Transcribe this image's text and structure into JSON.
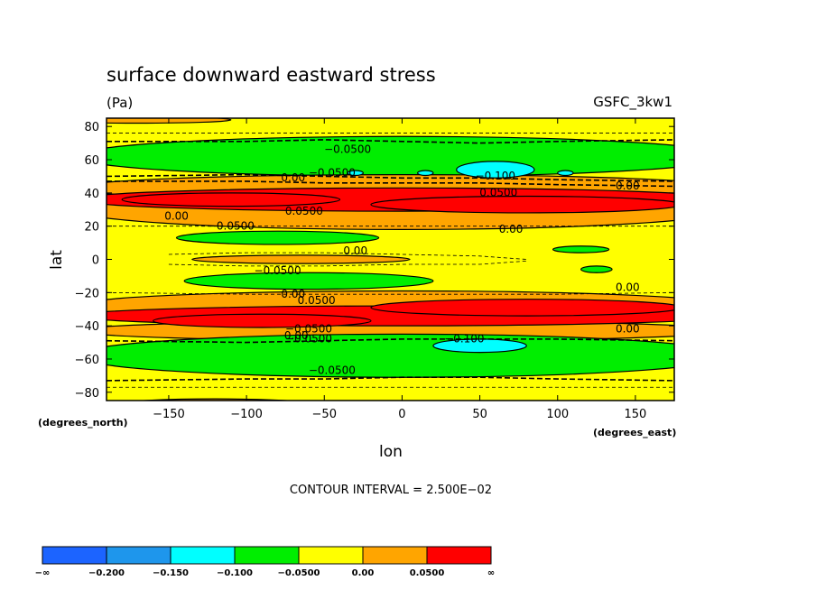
{
  "chart_data": {
    "type": "heatmap",
    "title": "surface downward eastward stress",
    "units": "(Pa)",
    "model_label": "GSFC_3kw1",
    "xlabel": "lon",
    "ylabel": "lat",
    "x_unit_note": "(degrees_east)",
    "y_unit_note": "(degrees_north)",
    "xlim": [
      -190,
      175
    ],
    "ylim": [
      -85,
      85
    ],
    "x_ticks": [
      -150,
      -100,
      -50,
      0,
      50,
      100,
      150
    ],
    "x_tick_labels": [
      "−150",
      "−100",
      "−50",
      "0",
      "50",
      "100",
      "150"
    ],
    "y_ticks": [
      80,
      60,
      40,
      20,
      0,
      -20,
      -40,
      -60,
      -80
    ],
    "y_tick_labels": [
      "80",
      "60",
      "40",
      "20",
      "0",
      "−20",
      "−40",
      "−60",
      "−80"
    ],
    "contour_interval_text": "CONTOUR INTERVAL = 2.500E−02",
    "colorbar": {
      "colors": [
        "#1c64ff",
        "#1e96ec",
        "#00ffff",
        "#00ee00",
        "#ffff00",
        "#ffa500",
        "#ff0000"
      ],
      "labels": [
        "−∞",
        "−0.200",
        "−0.150",
        "−0.100",
        "−0.0500",
        "0.00",
        "0.0500",
        "∞"
      ]
    },
    "background_color": "#ffff00",
    "regions": [
      {
        "color": "#ffa500",
        "cx": -170,
        "cy": 84,
        "rx": 60,
        "ry": 2
      },
      {
        "color": "#00ee00",
        "cx": 0,
        "cy": 62,
        "rx": 210,
        "ry": 12
      },
      {
        "color": "#ffa500",
        "cx": 0,
        "cy": 43,
        "rx": 210,
        "ry": 8
      },
      {
        "color": "#ffa500",
        "cx": 0,
        "cy": 30,
        "rx": 210,
        "ry": 12
      },
      {
        "color": "#ff0000",
        "cx": 0,
        "cy": 36,
        "rx": 210,
        "ry": 7
      },
      {
        "color": "#ff0000",
        "cx": -110,
        "cy": 36,
        "rx": 70,
        "ry": 4
      },
      {
        "color": "#ff0000",
        "cx": 80,
        "cy": 33,
        "rx": 100,
        "ry": 5
      },
      {
        "color": "#00ffff",
        "cx": 60,
        "cy": 54,
        "rx": 25,
        "ry": 5
      },
      {
        "color": "#00ffff",
        "cx": -30,
        "cy": 52,
        "rx": 5,
        "ry": 1.5
      },
      {
        "color": "#00ffff",
        "cx": 15,
        "cy": 52,
        "rx": 5,
        "ry": 1.5
      },
      {
        "color": "#00ffff",
        "cx": 105,
        "cy": 52,
        "rx": 5,
        "ry": 1.5
      },
      {
        "color": "#00ee00",
        "cx": -80,
        "cy": 13,
        "rx": 65,
        "ry": 4
      },
      {
        "color": "#00ee00",
        "cx": 115,
        "cy": 6,
        "rx": 18,
        "ry": 2
      },
      {
        "color": "#00ee00",
        "cx": 125,
        "cy": -6,
        "rx": 10,
        "ry": 2
      },
      {
        "color": "#ffa500",
        "cx": -65,
        "cy": 0,
        "rx": 70,
        "ry": 2.5
      },
      {
        "color": "#00ee00",
        "cx": -60,
        "cy": -13,
        "rx": 80,
        "ry": 5
      },
      {
        "color": "#ffa500",
        "cx": 0,
        "cy": -28,
        "rx": 210,
        "ry": 9
      },
      {
        "color": "#ffa500",
        "cx": 0,
        "cy": -43,
        "rx": 210,
        "ry": 6
      },
      {
        "color": "#ff0000",
        "cx": 0,
        "cy": -34,
        "rx": 210,
        "ry": 6
      },
      {
        "color": "#ff0000",
        "cx": -90,
        "cy": -37,
        "rx": 70,
        "ry": 4
      },
      {
        "color": "#ff0000",
        "cx": 80,
        "cy": -29,
        "rx": 100,
        "ry": 5
      },
      {
        "color": "#00ee00",
        "cx": 0,
        "cy": -58,
        "rx": 210,
        "ry": 13
      },
      {
        "color": "#00ffff",
        "cx": 50,
        "cy": -52,
        "rx": 30,
        "ry": 4
      },
      {
        "color": "#ffa500",
        "cx": -120,
        "cy": -87,
        "rx": 60,
        "ry": 3
      }
    ],
    "dashed_lines": [
      {
        "style": "bold",
        "points": [
          [
            -190,
            71
          ],
          [
            -100,
            71
          ],
          [
            -50,
            72
          ],
          [
            0,
            71
          ],
          [
            50,
            70
          ],
          [
            100,
            71
          ],
          [
            175,
            72
          ]
        ]
      },
      {
        "style": "bold",
        "points": [
          [
            -190,
            50
          ],
          [
            -100,
            51
          ],
          [
            -50,
            50
          ],
          [
            0,
            49
          ],
          [
            50,
            49
          ],
          [
            100,
            48
          ],
          [
            175,
            47
          ]
        ]
      },
      {
        "style": "bold",
        "points": [
          [
            -190,
            47
          ],
          [
            -100,
            47
          ],
          [
            -50,
            46
          ],
          [
            0,
            46
          ],
          [
            50,
            46
          ],
          [
            100,
            45
          ],
          [
            175,
            44
          ]
        ]
      },
      {
        "style": "bold",
        "points": [
          [
            -190,
            -49
          ],
          [
            -100,
            -50
          ],
          [
            -50,
            -49
          ],
          [
            0,
            -48
          ],
          [
            50,
            -48
          ],
          [
            100,
            -48
          ],
          [
            175,
            -49
          ]
        ]
      },
      {
        "style": "bold",
        "points": [
          [
            -190,
            -73
          ],
          [
            -100,
            -72
          ],
          [
            -50,
            -72
          ],
          [
            0,
            -71
          ],
          [
            50,
            -71
          ],
          [
            100,
            -72
          ],
          [
            175,
            -73
          ]
        ]
      },
      {
        "style": "thin",
        "points": [
          [
            -190,
            76
          ],
          [
            -100,
            76
          ],
          [
            0,
            76
          ],
          [
            100,
            76
          ],
          [
            175,
            76
          ]
        ]
      },
      {
        "style": "thin",
        "points": [
          [
            -190,
            -77
          ],
          [
            -100,
            -77
          ],
          [
            0,
            -77
          ],
          [
            100,
            -77
          ],
          [
            175,
            -77
          ]
        ]
      },
      {
        "style": "thin",
        "points": [
          [
            -150,
            3
          ],
          [
            -100,
            4
          ],
          [
            -50,
            4
          ],
          [
            0,
            3
          ],
          [
            50,
            2
          ],
          [
            80,
            0
          ]
        ]
      },
      {
        "style": "thin",
        "points": [
          [
            -150,
            -3
          ],
          [
            -100,
            -4
          ],
          [
            -50,
            -4
          ],
          [
            0,
            -3
          ],
          [
            50,
            -3
          ],
          [
            80,
            -1
          ]
        ]
      },
      {
        "style": "thin",
        "points": [
          [
            -190,
            -20
          ],
          [
            -100,
            -21
          ],
          [
            0,
            -21
          ],
          [
            100,
            -21
          ],
          [
            175,
            -20
          ]
        ]
      },
      {
        "style": "thin",
        "points": [
          [
            -190,
            20
          ],
          [
            -100,
            20
          ],
          [
            0,
            20
          ],
          [
            100,
            20
          ],
          [
            175,
            20
          ]
        ]
      }
    ],
    "contour_labels": [
      {
        "text": "−0.0500",
        "lon": -35,
        "lat": 64
      },
      {
        "text": "−0.0500",
        "lon": -45,
        "lat": 50
      },
      {
        "text": "0.00",
        "lon": -70,
        "lat": 47
      },
      {
        "text": "−0.100",
        "lon": 60,
        "lat": 48
      },
      {
        "text": "0.0500",
        "lon": 62,
        "lat": 38
      },
      {
        "text": "0.00",
        "lon": 145,
        "lat": 42
      },
      {
        "text": "0.0500",
        "lon": -63,
        "lat": 27
      },
      {
        "text": "0.00",
        "lon": -145,
        "lat": 24
      },
      {
        "text": "−0.0500",
        "lon": -110,
        "lat": 18
      },
      {
        "text": "0.00",
        "lon": 70,
        "lat": 16
      },
      {
        "text": "0.00",
        "lon": -30,
        "lat": 3
      },
      {
        "text": "−0.0500",
        "lon": -80,
        "lat": -9
      },
      {
        "text": "0.00",
        "lon": 145,
        "lat": -19
      },
      {
        "text": "0.00",
        "lon": -70,
        "lat": -23
      },
      {
        "text": "0.0500",
        "lon": -55,
        "lat": -27
      },
      {
        "text": "−0.0500",
        "lon": -60,
        "lat": -44
      },
      {
        "text": "0.00",
        "lon": 145,
        "lat": -44
      },
      {
        "text": "−0.0500",
        "lon": -60,
        "lat": -50
      },
      {
        "text": "0.00",
        "lon": -68,
        "lat": -48
      },
      {
        "text": "−0.100",
        "lon": 40,
        "lat": -50
      },
      {
        "text": "−0.0500",
        "lon": -45,
        "lat": -69
      }
    ]
  }
}
